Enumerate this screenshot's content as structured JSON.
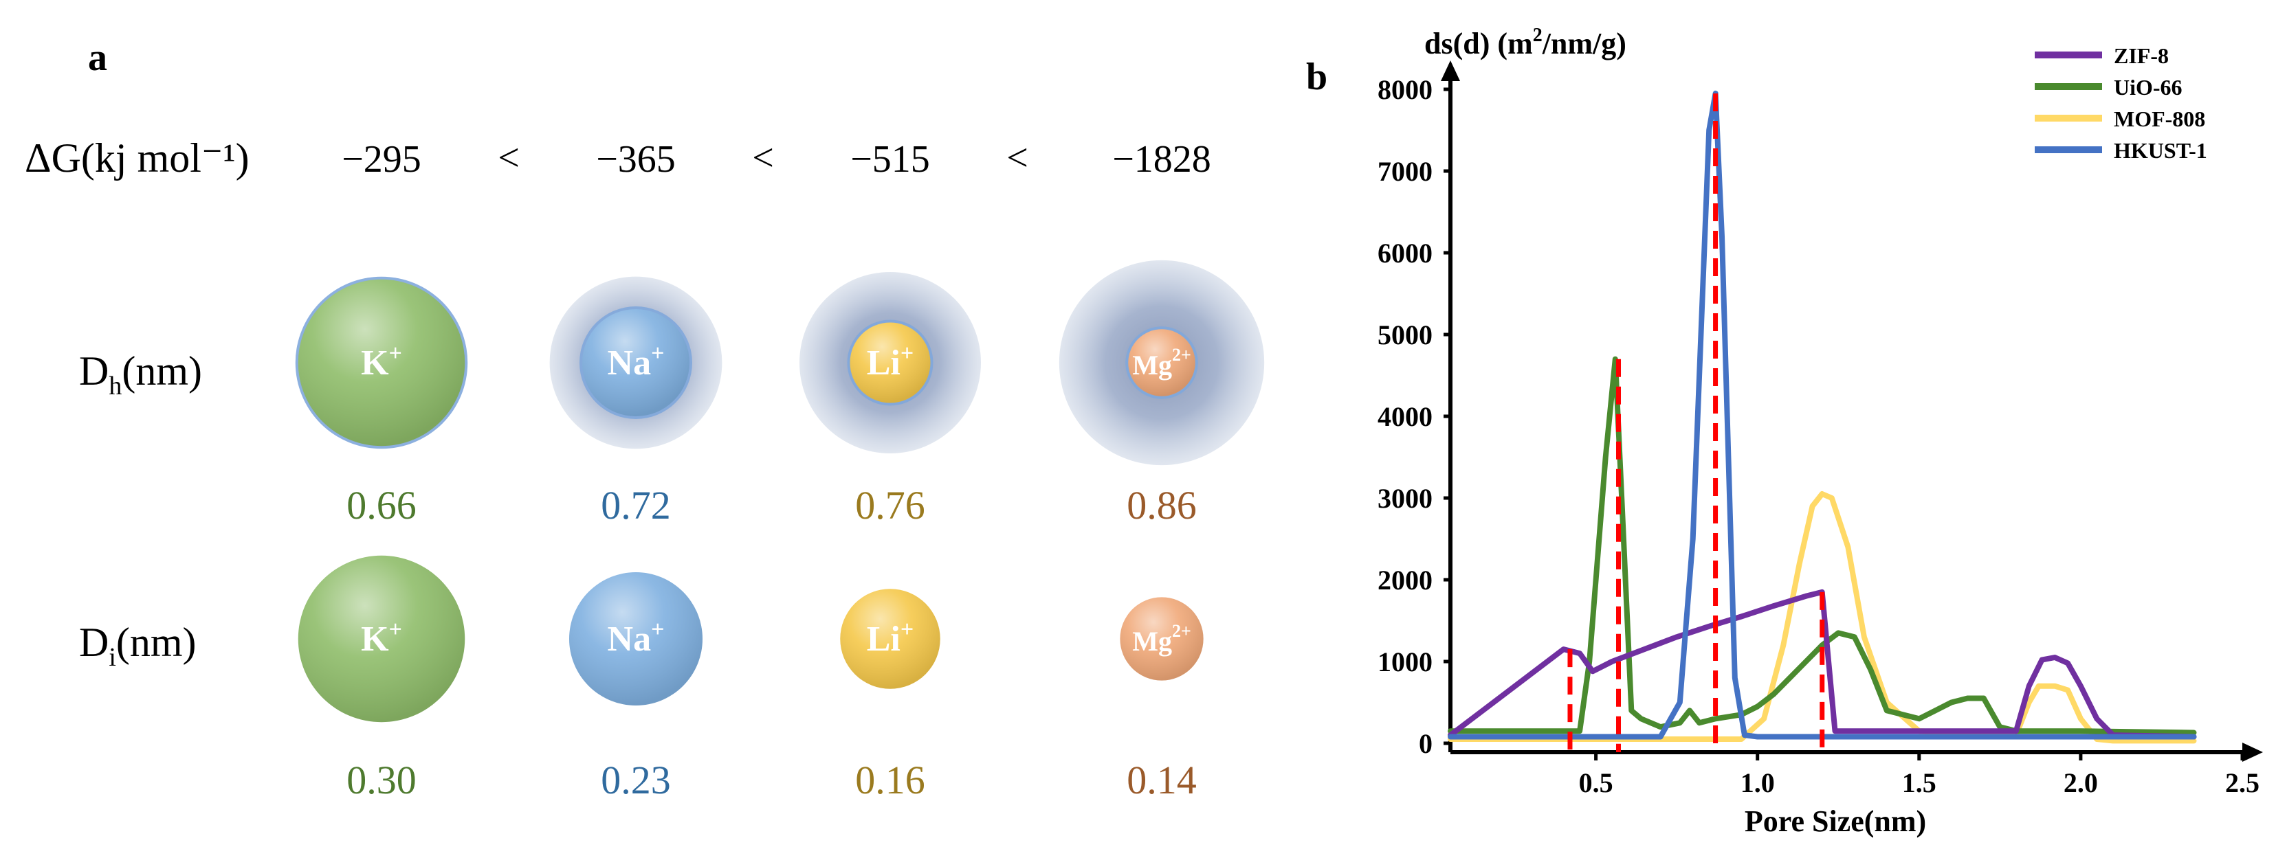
{
  "panel_a": {
    "label": "a",
    "dg_label": "ΔG(kj mol⁻¹)",
    "dg_values": [
      "−295",
      "−365",
      "−515",
      "−1828"
    ],
    "lt_symbol": "<",
    "dh_label_main": "D",
    "dh_label_sub": "h",
    "dh_label_unit": "(nm)",
    "di_label_main": "D",
    "di_label_sub": "i",
    "di_label_unit": "(nm)",
    "ions": [
      {
        "name": "K",
        "charge": "+",
        "dh": "0.66",
        "di": "0.30",
        "hydrated_ratio": 0.9,
        "ion_ratio": 1.0,
        "fill": "#8fbd6a",
        "text_color": "#4e7a2e"
      },
      {
        "name": "Na",
        "charge": "+",
        "dh": "0.72",
        "di": "0.23",
        "hydrated_ratio": 0.95,
        "ion_ratio": 0.8,
        "fill": "#7fb0e0",
        "text_color": "#2f6a9e"
      },
      {
        "name": "Li",
        "charge": "+",
        "dh": "0.76",
        "di": "0.16",
        "hydrated_ratio": 1.0,
        "ion_ratio": 0.6,
        "fill": "#f5c84a",
        "text_color": "#9a7a1e"
      },
      {
        "name": "Mg",
        "charge": "2+",
        "dh": "0.86",
        "di": "0.14",
        "hydrated_ratio": 1.13,
        "ion_ratio": 0.5,
        "fill": "#f0a878",
        "text_color": "#9a5a2a"
      }
    ],
    "colors": {
      "halo": "#9aabc8",
      "halo_rim": "#7fa7db"
    }
  },
  "chart_data": {
    "type": "line",
    "panel_label": "b",
    "title": "",
    "ylabel": "ds(d) (m",
    "ylabel_sup": "2",
    "ylabel_tail": "/nm/g)",
    "xlabel": "Pore Size(nm)",
    "xlim": [
      0.05,
      2.5
    ],
    "ylim": [
      0,
      8000
    ],
    "xticks": [
      0.5,
      1.0,
      1.5,
      2.0,
      2.5
    ],
    "xtick_labels": [
      "0.5",
      "1.0",
      "1.5",
      "2.0",
      "2.5"
    ],
    "yticks": [
      0,
      1000,
      2000,
      3000,
      4000,
      5000,
      6000,
      7000,
      8000
    ],
    "ytick_labels": [
      "0",
      "1000",
      "2000",
      "3000",
      "4000",
      "5000",
      "6000",
      "7000",
      "8000"
    ],
    "legend": "top-right",
    "series": [
      {
        "name": "ZIF-8",
        "color": "#7030a0",
        "x": [
          0.05,
          0.4,
          0.45,
          0.49,
          0.55,
          0.65,
          0.75,
          0.85,
          0.95,
          1.05,
          1.15,
          1.2,
          1.22,
          1.24,
          1.3,
          1.5,
          1.7,
          1.8,
          1.84,
          1.88,
          1.92,
          1.96,
          2.0,
          2.05,
          2.1,
          2.35
        ],
        "y": [
          100,
          1150,
          1100,
          880,
          1000,
          1150,
          1300,
          1430,
          1550,
          1680,
          1800,
          1850,
          1000,
          150,
          150,
          150,
          150,
          150,
          700,
          1020,
          1050,
          980,
          700,
          300,
          100,
          80
        ]
      },
      {
        "name": "UiO-66",
        "color": "#4a8a2e",
        "x": [
          0.05,
          0.45,
          0.48,
          0.53,
          0.56,
          0.58,
          0.61,
          0.64,
          0.7,
          0.76,
          0.79,
          0.82,
          0.87,
          0.95,
          1.0,
          1.05,
          1.1,
          1.15,
          1.2,
          1.25,
          1.3,
          1.35,
          1.4,
          1.5,
          1.55,
          1.6,
          1.65,
          1.7,
          1.75,
          1.8,
          2.0,
          2.35
        ],
        "y": [
          150,
          150,
          1000,
          3500,
          4700,
          3000,
          400,
          300,
          200,
          250,
          400,
          250,
          300,
          350,
          450,
          600,
          800,
          1000,
          1200,
          1350,
          1300,
          900,
          400,
          300,
          400,
          500,
          550,
          550,
          200,
          150,
          150,
          130
        ]
      },
      {
        "name": "MOF-808",
        "color": "#ffd966",
        "x": [
          0.05,
          0.95,
          1.02,
          1.08,
          1.13,
          1.17,
          1.2,
          1.23,
          1.28,
          1.33,
          1.4,
          1.5,
          1.7,
          1.8,
          1.84,
          1.87,
          1.92,
          1.96,
          2.0,
          2.05,
          2.1,
          2.35
        ],
        "y": [
          50,
          50,
          300,
          1200,
          2200,
          2900,
          3050,
          3000,
          2400,
          1300,
          500,
          150,
          120,
          100,
          500,
          700,
          700,
          650,
          300,
          50,
          30,
          30
        ]
      },
      {
        "name": "HKUST-1",
        "color": "#4472c4",
        "x": [
          0.05,
          0.7,
          0.76,
          0.8,
          0.83,
          0.85,
          0.87,
          0.89,
          0.91,
          0.93,
          0.96,
          1.0,
          1.1,
          2.35
        ],
        "y": [
          80,
          80,
          500,
          2500,
          5500,
          7500,
          7950,
          6200,
          3500,
          800,
          100,
          80,
          80,
          80
        ]
      }
    ],
    "reference_lines": {
      "color": "#ff0000",
      "x": [
        0.42,
        0.57,
        0.87,
        1.2
      ]
    }
  }
}
